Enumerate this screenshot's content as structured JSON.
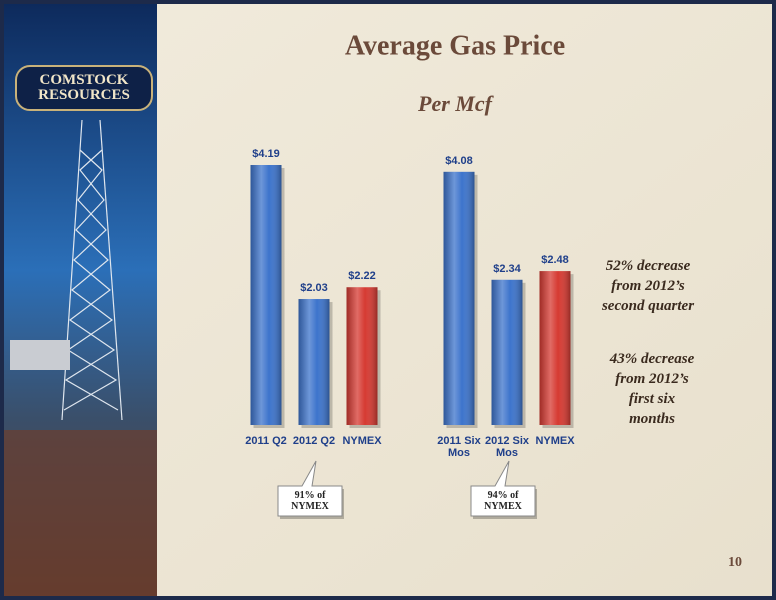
{
  "slide": {
    "title": "Average Gas Price",
    "subtitle": "Per Mcf",
    "logo": "COMSTOCK RESOURCES",
    "notes": [
      "52% decrease from 2012’s second quarter",
      "43% decrease from 2012’s first six months"
    ],
    "page_number": "10"
  },
  "chart_data": [
    {
      "type": "bar",
      "categories": [
        "2011 Q2",
        "2012 Q2",
        "NYMEX"
      ],
      "values": [
        4.19,
        2.03,
        2.22
      ],
      "value_labels": [
        "$4.19",
        "$2.03",
        "$2.22"
      ],
      "colors": [
        "#3d74cc",
        "#3d74cc",
        "#d63a32"
      ],
      "annotation": "91% of NYMEX"
    },
    {
      "type": "bar",
      "categories": [
        "2011 Six Mos",
        "2012 Six Mos",
        "NYMEX"
      ],
      "values": [
        4.08,
        2.34,
        2.48
      ],
      "value_labels": [
        "$4.08",
        "$2.34",
        "$2.48"
      ],
      "colors": [
        "#3d74cc",
        "#3d74cc",
        "#d63a32"
      ],
      "annotation": "94% of NYMEX"
    }
  ]
}
